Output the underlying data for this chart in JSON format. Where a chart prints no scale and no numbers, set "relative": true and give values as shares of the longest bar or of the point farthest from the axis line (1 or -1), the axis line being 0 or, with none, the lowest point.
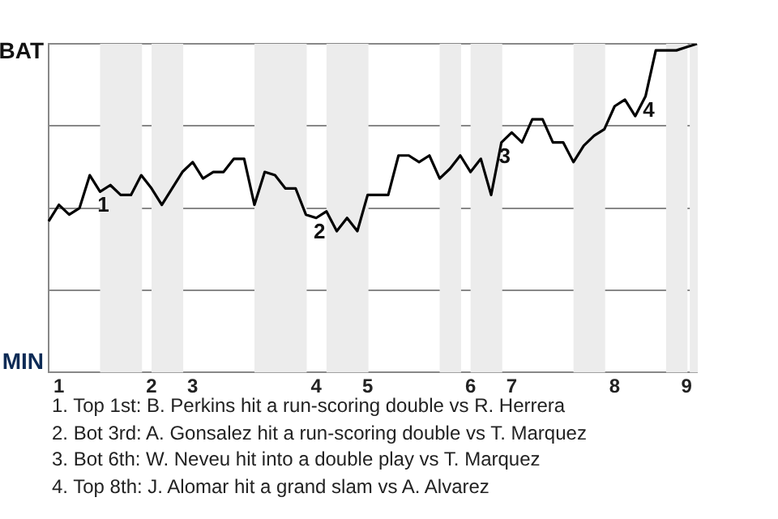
{
  "chart_data": {
    "type": "line",
    "relative": true,
    "categories": [
      null,
      "1",
      null,
      null,
      null,
      null,
      null,
      null,
      null,
      null,
      "2",
      null,
      null,
      null,
      "3",
      null,
      null,
      null,
      null,
      null,
      null,
      null,
      null,
      null,
      null,
      null,
      "4",
      null,
      null,
      null,
      null,
      "5",
      null,
      null,
      null,
      null,
      null,
      null,
      null,
      null,
      null,
      "6",
      null,
      null,
      null,
      "7",
      null,
      null,
      null,
      null,
      null,
      null,
      null,
      null,
      null,
      "8",
      null,
      null,
      null,
      null,
      null,
      null,
      "9",
      null
    ],
    "grid": "y",
    "legend": false,
    "marker": "none",
    "line_style": "solid",
    "series": [
      {
        "values": [
          0.46,
          0.51,
          0.48,
          0.5,
          0.6,
          0.55,
          0.57,
          0.54,
          0.54,
          0.6,
          0.56,
          0.51,
          0.56,
          0.61,
          0.64,
          0.59,
          0.61,
          0.61,
          0.65,
          0.65,
          0.51,
          0.61,
          0.6,
          0.56,
          0.56,
          0.48,
          0.47,
          0.49,
          0.43,
          0.47,
          0.43,
          0.54,
          0.54,
          0.54,
          0.66,
          0.66,
          0.64,
          0.66,
          0.59,
          0.62,
          0.66,
          0.61,
          0.65,
          0.54,
          0.7,
          0.73,
          0.7,
          0.77,
          0.77,
          0.7,
          0.7,
          0.64,
          0.69,
          0.72,
          0.74,
          0.81,
          0.83,
          0.78,
          0.84,
          0.98,
          0.98,
          0.98,
          0.99,
          1
        ],
        "color": "#000000"
      }
    ],
    "annotations": [
      "BAT",
      "MIN",
      {
        "text": "1",
        "y": 0.55
      },
      {
        "text": "2",
        "y": 0.47
      },
      {
        "text": "3",
        "y": 0.7
      },
      {
        "text": "4",
        "y": 0.84
      },
      "1. Top 1st: B. Perkins hit a run-scoring double vs R. Herrera",
      "2. Bot 3rd: A. Gonsalez hit a run-scoring double vs T. Marquez",
      "3. Bot 6th: W. Neveu hit into a double play vs T. Marquez",
      "4. Top 8th: J. Alomar hit a grand slam vs A. Alvarez"
    ]
  }
}
